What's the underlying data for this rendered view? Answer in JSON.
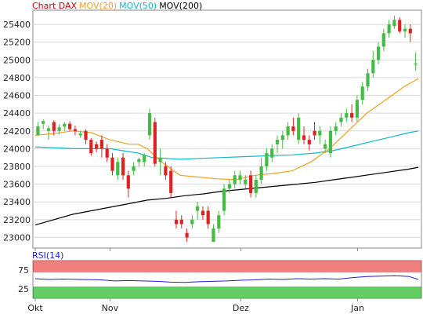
{
  "chart_data": [
    {
      "type": "candlestick",
      "legend": [
        {
          "label": "Chart DAX",
          "color": "#cc0000"
        },
        {
          "label": "MOV(20)",
          "color": "#f0a020"
        },
        {
          "label": "MOV(50)",
          "color": "#10b8c8"
        },
        {
          "label": "MOV(200)",
          "color": "#000000"
        }
      ],
      "ylim": [
        22880,
        25560
      ],
      "y_ticks": [
        23000,
        23200,
        23400,
        23600,
        23800,
        24000,
        24200,
        24400,
        24600,
        24800,
        25000,
        25200,
        25400
      ],
      "x_tick_labels": [
        "Okt",
        "Nov",
        "Dez",
        "Jan"
      ],
      "x_tick_days": [
        0,
        16,
        44,
        69
      ],
      "days": 82,
      "ohlc": [
        [
          24150,
          24300,
          24150,
          24250
        ],
        [
          24280,
          24330,
          24220,
          24310
        ],
        [
          24200,
          24260,
          24100,
          24230
        ],
        [
          24300,
          24320,
          24150,
          24200
        ],
        [
          24200,
          24270,
          24160,
          24240
        ],
        [
          24250,
          24300,
          24200,
          24280
        ],
        [
          24280,
          24310,
          24200,
          24220
        ],
        [
          24220,
          24260,
          24150,
          24200
        ],
        [
          24150,
          24200,
          24120,
          24170
        ],
        [
          24200,
          24220,
          24050,
          24100
        ],
        [
          24100,
          24120,
          23920,
          23950
        ],
        [
          24050,
          24080,
          23960,
          24000
        ],
        [
          24100,
          24150,
          23900,
          24000
        ],
        [
          24000,
          24050,
          23850,
          23900
        ],
        [
          23900,
          23950,
          23700,
          23750
        ],
        [
          23700,
          23900,
          23650,
          23850
        ],
        [
          23900,
          23950,
          23650,
          23700
        ],
        [
          23700,
          23750,
          23450,
          23550
        ],
        [
          23750,
          23850,
          23700,
          23800
        ],
        [
          23850,
          23900,
          23800,
          23880
        ],
        [
          23850,
          23950,
          23800,
          23930
        ],
        [
          24150,
          24450,
          24100,
          24400
        ],
        [
          24300,
          24350,
          23800,
          23830
        ],
        [
          23850,
          24000,
          23700,
          23900
        ],
        [
          23800,
          23850,
          23650,
          23700
        ],
        [
          23750,
          23800,
          23450,
          23500
        ],
        [
          23200,
          23300,
          23100,
          23150
        ],
        [
          23200,
          23250,
          23100,
          23150
        ],
        [
          23050,
          23100,
          22950,
          23000
        ],
        [
          23150,
          23250,
          23100,
          23200
        ],
        [
          23300,
          23400,
          23200,
          23350
        ],
        [
          23300,
          23350,
          23200,
          23250
        ],
        [
          23300,
          23350,
          23100,
          23150
        ],
        [
          22950,
          23150,
          22950,
          23100
        ],
        [
          23100,
          23300,
          23050,
          23250
        ],
        [
          23300,
          23600,
          23250,
          23550
        ],
        [
          23550,
          23650,
          23500,
          23600
        ],
        [
          23600,
          23750,
          23550,
          23700
        ],
        [
          23650,
          23750,
          23600,
          23700
        ],
        [
          23600,
          23700,
          23550,
          23650
        ],
        [
          23700,
          23750,
          23450,
          23500
        ],
        [
          23500,
          23700,
          23450,
          23650
        ],
        [
          23650,
          23900,
          23600,
          23800
        ],
        [
          23800,
          24000,
          23750,
          23950
        ],
        [
          23900,
          24050,
          23850,
          24000
        ],
        [
          24050,
          24150,
          23950,
          24100
        ],
        [
          24100,
          24200,
          24000,
          24150
        ],
        [
          24150,
          24300,
          24100,
          24250
        ],
        [
          24250,
          24350,
          24150,
          24200
        ],
        [
          24100,
          24400,
          24050,
          24350
        ],
        [
          24150,
          24250,
          24050,
          24100
        ],
        [
          24100,
          24150,
          23980,
          24050
        ],
        [
          24200,
          24300,
          24100,
          24150
        ],
        [
          24150,
          24250,
          24050,
          24200
        ],
        [
          24000,
          24100,
          23950,
          24050
        ],
        [
          23950,
          24250,
          23900,
          24200
        ],
        [
          24200,
          24300,
          24150,
          24250
        ],
        [
          24300,
          24400,
          24250,
          24350
        ],
        [
          24350,
          24450,
          24300,
          24400
        ],
        [
          24400,
          24500,
          24300,
          24350
        ],
        [
          24350,
          24600,
          24300,
          24550
        ],
        [
          24550,
          24750,
          24500,
          24700
        ],
        [
          24700,
          24900,
          24650,
          24850
        ],
        [
          24850,
          25100,
          24800,
          25000
        ],
        [
          25000,
          25200,
          24950,
          25150
        ],
        [
          25150,
          25350,
          25100,
          25300
        ],
        [
          25300,
          25450,
          25250,
          25400
        ],
        [
          25380,
          25500,
          25350,
          25450
        ],
        [
          25450,
          25480,
          25300,
          25320
        ],
        [
          25320,
          25400,
          25250,
          25350
        ],
        [
          25350,
          25400,
          25200,
          25300
        ],
        [
          24950,
          25080,
          24880,
          24960
        ]
      ],
      "ma20": [
        [
          0,
          24150
        ],
        [
          4,
          24170
        ],
        [
          8,
          24200
        ],
        [
          12,
          24180
        ],
        [
          16,
          24100
        ],
        [
          20,
          24050
        ],
        [
          22,
          24050
        ],
        [
          24,
          24000
        ],
        [
          27,
          23850
        ],
        [
          31,
          23700
        ],
        [
          35,
          23680
        ],
        [
          39,
          23660
        ],
        [
          43,
          23650
        ],
        [
          47,
          23700
        ],
        [
          51,
          23720
        ],
        [
          55,
          23750
        ],
        [
          59,
          23850
        ],
        [
          63,
          24000
        ],
        [
          67,
          24200
        ],
        [
          71,
          24400
        ],
        [
          75,
          24550
        ],
        [
          79,
          24700
        ],
        [
          82,
          24790
        ]
      ],
      "ma50": [
        [
          0,
          24020
        ],
        [
          8,
          24000
        ],
        [
          16,
          24000
        ],
        [
          22,
          23950
        ],
        [
          25,
          23900
        ],
        [
          28,
          23890
        ],
        [
          31,
          23880
        ],
        [
          35,
          23890
        ],
        [
          40,
          23900
        ],
        [
          45,
          23910
        ],
        [
          50,
          23920
        ],
        [
          55,
          23930
        ],
        [
          60,
          23950
        ],
        [
          64,
          23980
        ],
        [
          68,
          24030
        ],
        [
          72,
          24080
        ],
        [
          76,
          24130
        ],
        [
          80,
          24180
        ],
        [
          82,
          24200
        ]
      ],
      "ma200": [
        [
          0,
          23140
        ],
        [
          4,
          23200
        ],
        [
          8,
          23260
        ],
        [
          12,
          23300
        ],
        [
          16,
          23340
        ],
        [
          20,
          23380
        ],
        [
          24,
          23420
        ],
        [
          28,
          23440
        ],
        [
          32,
          23470
        ],
        [
          36,
          23490
        ],
        [
          40,
          23520
        ],
        [
          44,
          23540
        ],
        [
          48,
          23560
        ],
        [
          52,
          23580
        ],
        [
          56,
          23600
        ],
        [
          60,
          23620
        ],
        [
          64,
          23650
        ],
        [
          68,
          23680
        ],
        [
          72,
          23710
        ],
        [
          76,
          23740
        ],
        [
          80,
          23770
        ],
        [
          82,
          23790
        ]
      ]
    },
    {
      "type": "line",
      "legend": [
        {
          "label": "RSI(14)",
          "color": "#2020cc"
        }
      ],
      "ylim": [
        0,
        100
      ],
      "y_ticks": [
        25,
        75
      ],
      "overbought_zone": [
        70,
        100
      ],
      "oversold_zone": [
        0,
        30
      ],
      "values": [
        [
          0,
          52
        ],
        [
          3,
          50
        ],
        [
          6,
          51
        ],
        [
          10,
          50
        ],
        [
          14,
          49
        ],
        [
          17,
          46
        ],
        [
          20,
          47
        ],
        [
          23,
          46
        ],
        [
          26,
          45
        ],
        [
          29,
          43
        ],
        [
          32,
          42
        ],
        [
          35,
          44
        ],
        [
          38,
          45
        ],
        [
          41,
          46
        ],
        [
          44,
          48
        ],
        [
          47,
          49
        ],
        [
          50,
          51
        ],
        [
          53,
          50
        ],
        [
          56,
          52
        ],
        [
          59,
          51
        ],
        [
          62,
          52
        ],
        [
          65,
          51
        ],
        [
          68,
          55
        ],
        [
          71,
          58
        ],
        [
          74,
          59
        ],
        [
          77,
          60
        ],
        [
          80,
          58
        ],
        [
          82,
          50
        ]
      ]
    }
  ]
}
